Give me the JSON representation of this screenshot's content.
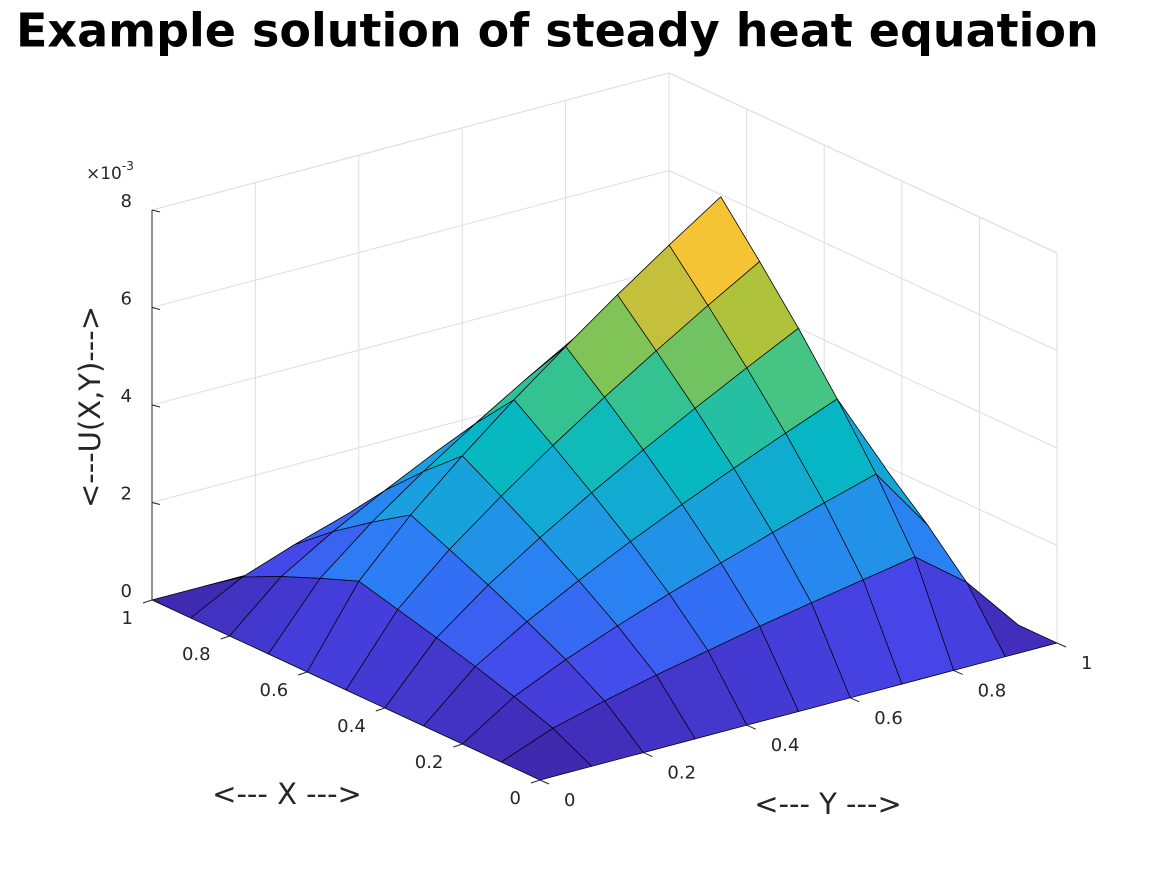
{
  "chart_data": {
    "type": "surface",
    "title": "Example solution of steady heat equation",
    "xlabel": "<--- X --->",
    "ylabel": "<--- Y --->",
    "zlabel": "<---U(X,Y)--->",
    "z_exponent_label": {
      "base": "×10",
      "exponent": "-3"
    },
    "x": [
      0,
      0.1,
      0.2,
      0.3,
      0.4,
      0.5,
      0.6,
      0.7,
      0.8,
      0.9,
      1
    ],
    "y": [
      0,
      0.1,
      0.2,
      0.3,
      0.4,
      0.5,
      0.6,
      0.7,
      0.8,
      0.9,
      1
    ],
    "z": [
      [
        0,
        0,
        0,
        0,
        0,
        0,
        0,
        0,
        0,
        0,
        0
      ],
      [
        0,
        0.41,
        0.69,
        0.94,
        1.16,
        1.38,
        1.58,
        1.77,
        1.96,
        1.16,
        0
      ],
      [
        0,
        0.69,
        1.17,
        1.58,
        1.96,
        2.31,
        2.65,
        2.98,
        3.29,
        1.96,
        0
      ],
      [
        0,
        0.94,
        1.58,
        2.14,
        2.66,
        3.14,
        3.6,
        4.04,
        4.46,
        2.66,
        0
      ],
      [
        0,
        1.16,
        1.96,
        2.65,
        3.29,
        3.89,
        4.46,
        5.01,
        5.54,
        3.29,
        0
      ],
      [
        0,
        1.37,
        2.32,
        3.13,
        3.89,
        4.6,
        5.27,
        5.92,
        6.54,
        3.89,
        0
      ],
      [
        0,
        1.58,
        2.66,
        3.59,
        4.46,
        5.27,
        6.05,
        6.79,
        7.5,
        4.46,
        0
      ],
      [
        0,
        1.27,
        2.14,
        2.9,
        3.6,
        4.25,
        4.87,
        5.47,
        6.05,
        3.6,
        0
      ],
      [
        0,
        0.94,
        1.58,
        2.14,
        2.66,
        3.14,
        3.6,
        4.04,
        4.46,
        2.66,
        0
      ],
      [
        0,
        0.56,
        0.94,
        1.27,
        1.58,
        1.87,
        2.14,
        2.4,
        2.66,
        1.58,
        0
      ],
      [
        0,
        0,
        0,
        0,
        0,
        0,
        0,
        0,
        0,
        0,
        0
      ]
    ],
    "xlim": [
      0,
      1
    ],
    "ylim": [
      0,
      1
    ],
    "zlim": [
      0,
      8
    ],
    "xticks": [
      0,
      0.2,
      0.4,
      0.6,
      0.8,
      1
    ],
    "yticks": [
      0,
      0.2,
      0.4,
      0.6,
      0.8,
      1
    ],
    "zticks": [
      0,
      2,
      4,
      6,
      8
    ],
    "grid": true,
    "colormap": [
      "#3e26a8",
      "#4744e8",
      "#2f79f7",
      "#1a9fe0",
      "#06b8c2",
      "#3dc489",
      "#a4c33b",
      "#f3bb3a",
      "#f9fb15"
    ]
  }
}
